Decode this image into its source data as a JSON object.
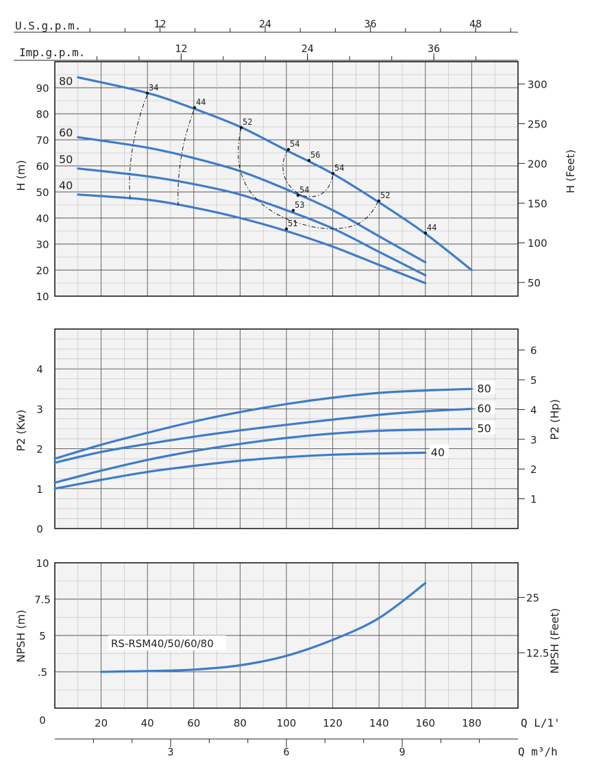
{
  "chart_data": [
    {
      "type": "line",
      "panel": "head",
      "ylabel": "H (m)",
      "ylabel_right": "H (Feet)",
      "xlim": [
        0,
        200
      ],
      "ylim": [
        10,
        100
      ],
      "y_ticks": [
        "10",
        "20",
        "30",
        "40",
        "50",
        "60",
        "70",
        "80",
        "90"
      ],
      "y_ticks_right": [
        "50",
        "100",
        "150",
        "200",
        "250",
        "300"
      ],
      "top_axis_1": {
        "label": "U.S.g.p.m.",
        "ticks": [
          "12",
          "24",
          "36",
          "48"
        ]
      },
      "top_axis_2": {
        "label": "Imp.g.p.m.",
        "ticks": [
          "12",
          "24",
          "36"
        ]
      },
      "series": [
        {
          "name": "80",
          "x": [
            10,
            40,
            60,
            80,
            100,
            120,
            140,
            160,
            180
          ],
          "y": [
            94,
            88,
            82,
            75,
            66,
            57,
            46,
            34,
            20
          ]
        },
        {
          "name": "60",
          "x": [
            10,
            40,
            60,
            80,
            100,
            120,
            140,
            160
          ],
          "y": [
            71,
            67,
            63,
            58,
            51,
            43,
            33,
            23
          ]
        },
        {
          "name": "50",
          "x": [
            10,
            40,
            60,
            80,
            100,
            120,
            140,
            160
          ],
          "y": [
            59,
            56,
            53,
            49,
            43,
            36,
            27,
            18
          ]
        },
        {
          "name": "40",
          "x": [
            10,
            40,
            60,
            80,
            100,
            120,
            140,
            160
          ],
          "y": [
            49,
            47,
            44,
            40,
            35,
            29,
            22,
            15
          ]
        }
      ],
      "efficiency_labels": [
        "34",
        "44",
        "52",
        "54",
        "56",
        "54",
        "52",
        "44",
        "54",
        "53",
        "51"
      ],
      "grid": true
    },
    {
      "type": "line",
      "panel": "power",
      "ylabel": "P2 (Kw)",
      "ylabel_right": "P2 (Hp)",
      "xlim": [
        0,
        200
      ],
      "ylim": [
        0,
        5
      ],
      "y_ticks": [
        "0",
        "1",
        "2",
        "3",
        "4"
      ],
      "y_ticks_right": [
        "1",
        "2",
        "3",
        "4",
        "5",
        "6"
      ],
      "series": [
        {
          "name": "80",
          "x": [
            0,
            20,
            40,
            60,
            80,
            100,
            120,
            140,
            160,
            180
          ],
          "y": [
            1.75,
            2.1,
            2.4,
            2.68,
            2.92,
            3.12,
            3.28,
            3.4,
            3.46,
            3.5
          ]
        },
        {
          "name": "60",
          "x": [
            0,
            20,
            40,
            60,
            80,
            100,
            120,
            140,
            160,
            180
          ],
          "y": [
            1.65,
            1.92,
            2.12,
            2.3,
            2.46,
            2.6,
            2.73,
            2.85,
            2.94,
            3.0
          ]
        },
        {
          "name": "50",
          "x": [
            0,
            20,
            40,
            60,
            80,
            100,
            120,
            140,
            160,
            180
          ],
          "y": [
            1.15,
            1.45,
            1.72,
            1.94,
            2.12,
            2.27,
            2.38,
            2.45,
            2.48,
            2.5
          ]
        },
        {
          "name": "40",
          "x": [
            0,
            20,
            40,
            60,
            80,
            100,
            120,
            140,
            160
          ],
          "y": [
            1.0,
            1.22,
            1.42,
            1.57,
            1.7,
            1.79,
            1.85,
            1.88,
            1.9
          ]
        }
      ],
      "grid": true
    },
    {
      "type": "line",
      "panel": "npsh",
      "ylabel": "NPSH (m)",
      "ylabel_right": "NPSH (Feet)",
      "xlim": [
        0,
        200
      ],
      "ylim": [
        0,
        10
      ],
      "y_ticks": [
        "0",
        ".5",
        "5",
        "7.5",
        "10"
      ],
      "y_ticks_right": [
        "12.5",
        "25"
      ],
      "series": [
        {
          "name": "RS-RSM40/50/60/80",
          "x": [
            20,
            40,
            60,
            80,
            100,
            120,
            140,
            160
          ],
          "y": [
            2.5,
            2.55,
            2.65,
            2.95,
            3.6,
            4.7,
            6.2,
            8.6
          ]
        }
      ],
      "bottom_axis_1": {
        "label": "Q L/1'",
        "ticks": [
          "20",
          "40",
          "60",
          "80",
          "100",
          "120",
          "140",
          "160",
          "180"
        ]
      },
      "bottom_axis_2": {
        "label": "Q m³/h",
        "ticks": [
          "3",
          "6",
          "9"
        ]
      },
      "grid": true
    }
  ]
}
